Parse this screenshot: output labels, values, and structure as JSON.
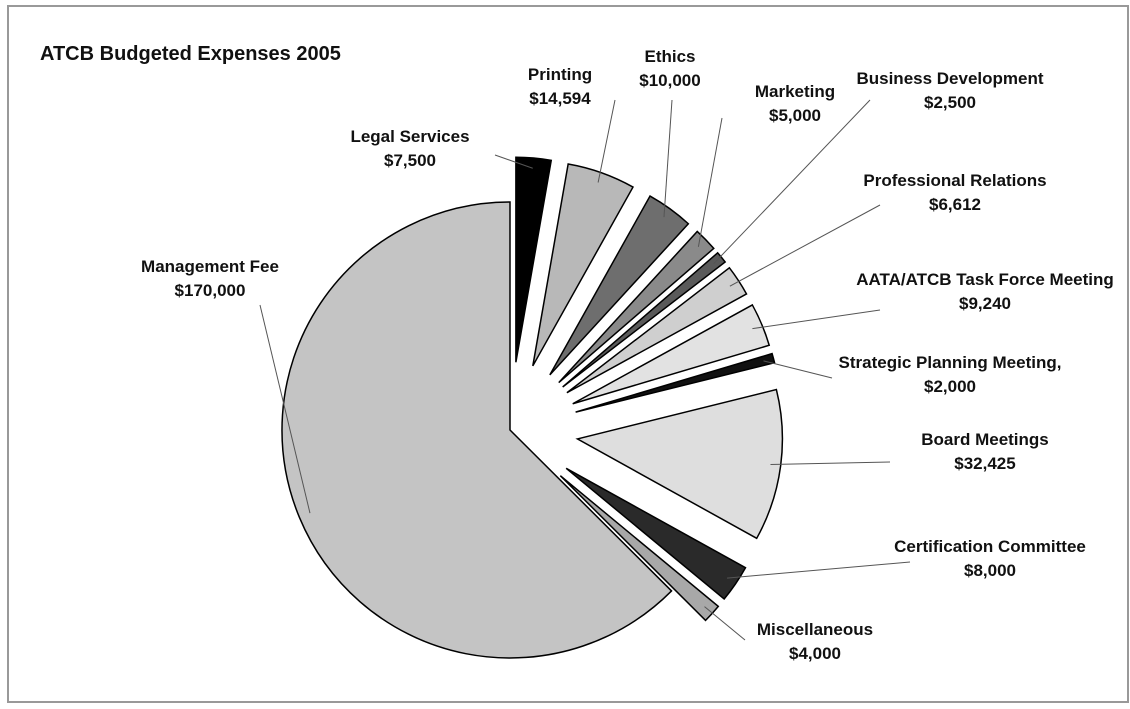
{
  "chart_data": {
    "type": "pie",
    "title": "ATCB Budgeted Expenses 2005",
    "categories": [
      "Legal Services",
      "Printing",
      "Ethics",
      "Marketing",
      "Business Development",
      "Professional Relations",
      "AATA/ATCB Task Force Meeting",
      "Strategic Planning Meeting,",
      "Board Meetings",
      "Certification Committee",
      "Miscellaneous",
      "Management Fee"
    ],
    "values": [
      7500,
      14594,
      10000,
      5000,
      2500,
      6612,
      9240,
      2000,
      32425,
      8000,
      4000,
      170000
    ],
    "value_labels": [
      "$7,500",
      "$14,594",
      "$10,000",
      "$5,000",
      "$2,500",
      "$6,612",
      "$9,240",
      "$2,000",
      "$32,425",
      "$8,000",
      "$4,000",
      "$170,000"
    ],
    "colors": [
      "#000000",
      "#b8b8b8",
      "#6e6e6e",
      "#8a8a8a",
      "#5a5a5a",
      "#cfcfcf",
      "#e2e2e2",
      "#111111",
      "#dedede",
      "#2a2a2a",
      "#a8a8a8",
      "#c4c4c4"
    ]
  }
}
